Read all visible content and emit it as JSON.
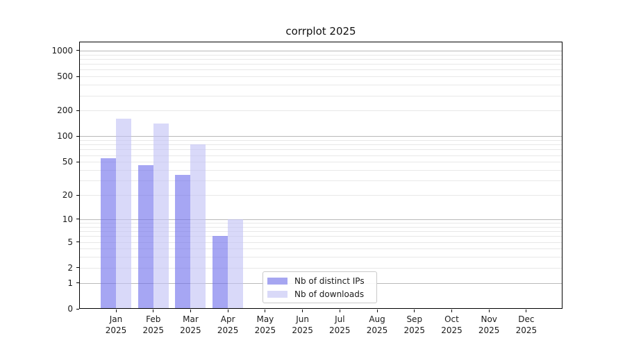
{
  "chart_data": {
    "type": "bar",
    "title": "corrplot 2025",
    "x_categories": [
      "Jan",
      "Feb",
      "Mar",
      "Apr",
      "May",
      "Jun",
      "Jul",
      "Aug",
      "Sep",
      "Oct",
      "Nov",
      "Dec"
    ],
    "x_year_label": "2025",
    "series": [
      {
        "name": "Nb of distinct IPs",
        "color": "#a6a6f1",
        "fill": "rgba(107,107,235,0.6)",
        "values": [
          55,
          46,
          35,
          6,
          0,
          0,
          0,
          0,
          0,
          0,
          0,
          0
        ]
      },
      {
        "name": "Nb of downloads",
        "color": "#d9d9f8",
        "fill": "rgba(192,192,245,0.6)",
        "values": [
          160,
          140,
          80,
          10,
          0,
          0,
          0,
          0,
          0,
          0,
          0,
          0
        ]
      }
    ],
    "yscale": "log(1+y)",
    "y_ticks": [
      0,
      1,
      2,
      5,
      10,
      20,
      50,
      100,
      200,
      500,
      1000
    ],
    "y_max": 1270,
    "grid": {
      "emphasized_lines": [
        1,
        10,
        100,
        1000
      ],
      "minor_lines": [
        2,
        3,
        4,
        5,
        6,
        7,
        8,
        9,
        20,
        30,
        40,
        50,
        60,
        70,
        80,
        90,
        200,
        300,
        400,
        500,
        600,
        700,
        800,
        900
      ]
    },
    "legend": {
      "location": "lower center-left",
      "entries": [
        "Nb of distinct IPs",
        "Nb of downloads"
      ]
    },
    "colors": {
      "background": "#ffffff",
      "axis": "#000000",
      "grid_major": "#b9b9b9",
      "grid_minor": "#e8e8e8",
      "text": "#1a1a1a"
    }
  }
}
